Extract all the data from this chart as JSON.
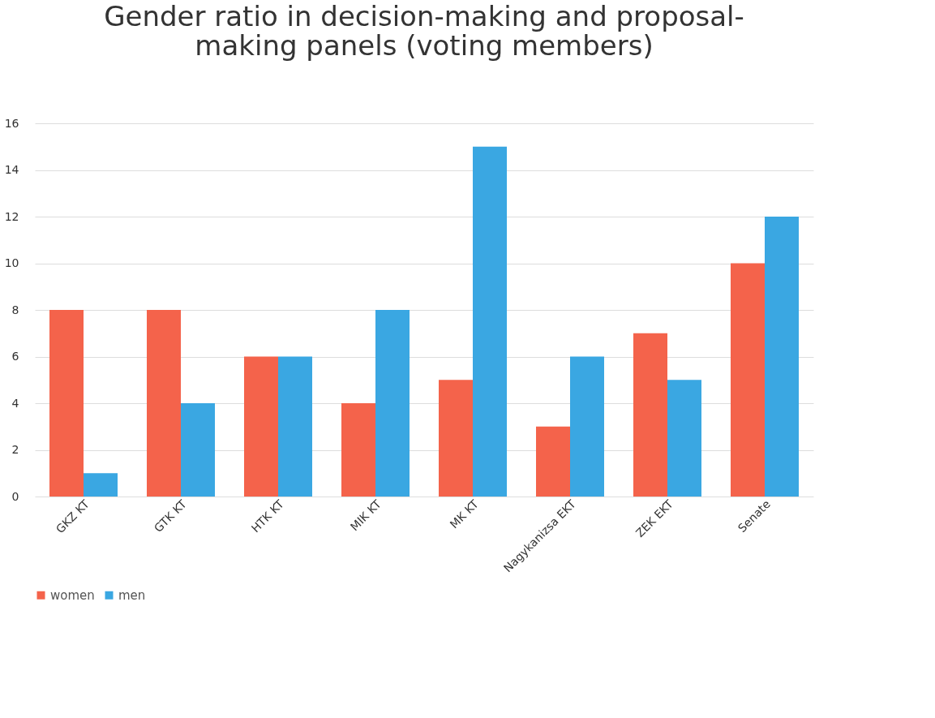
{
  "chart_data": {
    "type": "bar",
    "title": [
      "Gender ratio in decision-making and proposal-",
      "making panels (voting members)"
    ],
    "categories": [
      "GKZ KT",
      "GTK KT",
      "HTK KT",
      "MIK KT",
      "MK KT",
      "Nagykanizsa EKT",
      "ZEK EKT",
      "Senate"
    ],
    "series": [
      {
        "name": "women",
        "color": "#f4634b",
        "values": [
          8,
          8,
          6,
          4,
          5,
          3,
          7,
          10
        ]
      },
      {
        "name": "men",
        "color": "#3aa7e2",
        "values": [
          1,
          4,
          6,
          8,
          15,
          6,
          5,
          12
        ]
      }
    ],
    "ylim": [
      0,
      16
    ],
    "yticks": [
      0,
      2,
      4,
      6,
      8,
      10,
      12,
      14,
      16
    ],
    "grid": "y",
    "legend": "bottom"
  }
}
